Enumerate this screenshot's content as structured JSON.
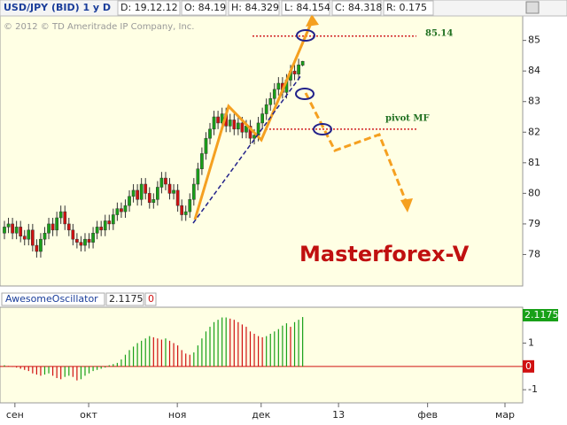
{
  "chart_data": [
    {
      "type": "candlestick",
      "title": "USD/JPY (BID) 1 y D",
      "info": [
        "D: 19.12.12",
        "O: 84.19",
        "H: 84.329",
        "L: 84.154",
        "C: 84.318",
        "R: 0.175"
      ],
      "copyright": "© 2012 © TD Ameritrade IP Company, Inc.",
      "watermark": "Masterforex-V",
      "x": [
        0,
        1,
        2,
        3,
        4,
        5,
        6,
        7,
        8,
        9,
        10,
        11,
        12,
        13,
        14,
        15,
        16,
        17,
        18,
        19,
        20,
        21,
        22,
        23,
        24,
        25,
        26,
        27,
        28,
        29,
        30,
        31,
        32,
        33,
        34,
        35,
        36,
        37,
        38,
        39,
        40,
        41,
        42,
        43,
        44,
        45,
        46,
        47,
        48,
        49,
        50,
        51,
        52,
        53,
        54,
        55,
        56,
        57,
        58,
        59,
        60,
        61,
        62,
        63,
        64,
        65,
        66,
        67,
        68,
        69,
        70,
        71,
        72,
        73,
        74
      ],
      "open": [
        78.7,
        78.9,
        79.0,
        78.7,
        78.9,
        78.6,
        78.5,
        78.8,
        78.3,
        78.1,
        78.5,
        78.7,
        79.0,
        78.8,
        79.2,
        79.4,
        79.0,
        78.8,
        78.5,
        78.4,
        78.3,
        78.5,
        78.4,
        78.7,
        78.9,
        78.8,
        79.1,
        79.0,
        79.3,
        79.5,
        79.4,
        79.6,
        79.9,
        80.1,
        79.8,
        80.3,
        80.0,
        79.7,
        79.8,
        80.2,
        80.5,
        80.3,
        80.0,
        80.1,
        79.6,
        79.3,
        79.4,
        79.8,
        80.3,
        80.8,
        81.3,
        81.8,
        82.1,
        82.5,
        82.3,
        82.6,
        82.2,
        82.4,
        82.1,
        82.3,
        82.0,
        82.2,
        81.8,
        81.9,
        82.3,
        82.6,
        82.9,
        83.1,
        83.4,
        83.6,
        83.3,
        83.7,
        84.0,
        83.9,
        84.19
      ],
      "high": [
        79.1,
        79.2,
        79.2,
        79.1,
        79.1,
        78.8,
        79.0,
        79.0,
        78.5,
        78.7,
        78.9,
        79.2,
        79.2,
        79.4,
        79.6,
        79.6,
        79.2,
        79.0,
        78.7,
        78.6,
        78.7,
        78.7,
        78.9,
        79.1,
        79.1,
        79.3,
        79.3,
        79.5,
        79.7,
        79.7,
        79.8,
        80.1,
        80.3,
        80.3,
        80.5,
        80.5,
        80.2,
        80.0,
        80.4,
        80.7,
        80.7,
        80.5,
        80.3,
        80.3,
        79.8,
        79.6,
        80.0,
        80.5,
        81.0,
        81.5,
        82.0,
        82.3,
        82.7,
        82.7,
        82.8,
        82.8,
        82.6,
        82.6,
        82.5,
        82.5,
        82.4,
        82.4,
        82.1,
        82.5,
        82.8,
        83.1,
        83.3,
        83.6,
        83.8,
        83.8,
        83.9,
        84.2,
        84.2,
        84.4,
        84.329
      ],
      "low": [
        78.5,
        78.7,
        78.5,
        78.5,
        78.4,
        78.3,
        78.3,
        78.1,
        77.9,
        77.9,
        78.3,
        78.5,
        78.6,
        78.6,
        79.0,
        78.8,
        78.6,
        78.3,
        78.2,
        78.1,
        78.1,
        78.2,
        78.2,
        78.5,
        78.6,
        78.6,
        78.8,
        78.8,
        79.1,
        79.2,
        79.2,
        79.4,
        79.7,
        79.6,
        79.6,
        79.8,
        79.5,
        79.5,
        79.6,
        80.0,
        80.1,
        79.8,
        79.8,
        79.4,
        79.1,
        79.1,
        79.2,
        79.6,
        80.1,
        80.6,
        81.1,
        81.6,
        81.9,
        82.1,
        82.1,
        82.0,
        82.0,
        81.9,
        81.9,
        81.8,
        81.8,
        81.6,
        81.6,
        81.7,
        82.1,
        82.4,
        82.7,
        82.9,
        83.2,
        83.1,
        83.1,
        83.5,
        83.7,
        83.7,
        84.154
      ],
      "close": [
        78.9,
        79.0,
        78.7,
        78.9,
        78.6,
        78.5,
        78.8,
        78.3,
        78.1,
        78.5,
        78.7,
        79.0,
        78.8,
        79.2,
        79.4,
        79.0,
        78.8,
        78.5,
        78.4,
        78.3,
        78.5,
        78.4,
        78.7,
        78.9,
        78.8,
        79.1,
        79.0,
        79.3,
        79.5,
        79.4,
        79.6,
        79.9,
        80.1,
        79.8,
        80.3,
        80.0,
        79.7,
        79.8,
        80.2,
        80.5,
        80.3,
        80.0,
        80.1,
        79.6,
        79.3,
        79.4,
        79.8,
        80.3,
        80.8,
        81.3,
        81.8,
        82.1,
        82.5,
        82.3,
        82.6,
        82.2,
        82.4,
        82.1,
        82.3,
        82.0,
        82.2,
        81.8,
        81.9,
        82.3,
        82.6,
        82.9,
        83.1,
        83.4,
        83.6,
        83.3,
        83.7,
        84.0,
        83.9,
        84.2,
        84.318
      ],
      "up_color": "#18a018",
      "down_color": "#d01010",
      "levels": [
        {
          "value": 85.14,
          "label": "85.14"
        },
        {
          "value": 82.1,
          "label": "pivot MF"
        }
      ],
      "xlim": [
        -1.1,
        128.6
      ],
      "xticks": [
        {
          "value": 2.6,
          "label": "сен"
        },
        {
          "value": 20.9,
          "label": "окт"
        },
        {
          "value": 42.9,
          "label": "ноя"
        },
        {
          "value": 63.7,
          "label": "дек"
        },
        {
          "value": 82.9,
          "label": "13"
        },
        {
          "value": 105,
          "label": "фев"
        },
        {
          "value": 124.2,
          "label": "мар"
        }
      ],
      "ylim": [
        77,
        85.8
      ],
      "yticks": [
        78,
        79,
        80,
        81,
        82,
        83,
        84,
        85
      ]
    },
    {
      "type": "bar",
      "title": "AwesomeOscillator",
      "info": [
        "2.1175",
        "0"
      ],
      "x": [
        0,
        1,
        2,
        3,
        4,
        5,
        6,
        7,
        8,
        9,
        10,
        11,
        12,
        13,
        14,
        15,
        16,
        17,
        18,
        19,
        20,
        21,
        22,
        23,
        24,
        25,
        26,
        27,
        28,
        29,
        30,
        31,
        32,
        33,
        34,
        35,
        36,
        37,
        38,
        39,
        40,
        41,
        42,
        43,
        44,
        45,
        46,
        47,
        48,
        49,
        50,
        51,
        52,
        53,
        54,
        55,
        56,
        57,
        58,
        59,
        60,
        61,
        62,
        63,
        64,
        65,
        66,
        67,
        68,
        69,
        70,
        71,
        72,
        73,
        74
      ],
      "values": [
        0.05,
        0.02,
        -0.02,
        -0.05,
        -0.1,
        -0.15,
        -0.2,
        -0.3,
        -0.35,
        -0.4,
        -0.35,
        -0.3,
        -0.4,
        -0.5,
        -0.55,
        -0.45,
        -0.4,
        -0.45,
        -0.6,
        -0.55,
        -0.4,
        -0.3,
        -0.2,
        -0.15,
        -0.1,
        -0.05,
        0.05,
        0.1,
        0.15,
        0.3,
        0.5,
        0.7,
        0.85,
        1.0,
        1.1,
        1.2,
        1.3,
        1.25,
        1.2,
        1.15,
        1.2,
        1.1,
        1.0,
        0.9,
        0.7,
        0.55,
        0.5,
        0.6,
        0.9,
        1.2,
        1.5,
        1.7,
        1.9,
        2.0,
        2.1,
        2.1,
        2.05,
        2.0,
        1.9,
        1.8,
        1.7,
        1.5,
        1.4,
        1.3,
        1.25,
        1.3,
        1.4,
        1.5,
        1.6,
        1.75,
        1.85,
        1.7,
        1.9,
        2.0,
        2.1175
      ],
      "up_color": "#18a018",
      "down_color": "#d01010",
      "xlim": [
        -1.1,
        128.6
      ],
      "ylim": [
        -1.45,
        2.5
      ],
      "yticks": [
        -1,
        0,
        1
      ]
    }
  ]
}
